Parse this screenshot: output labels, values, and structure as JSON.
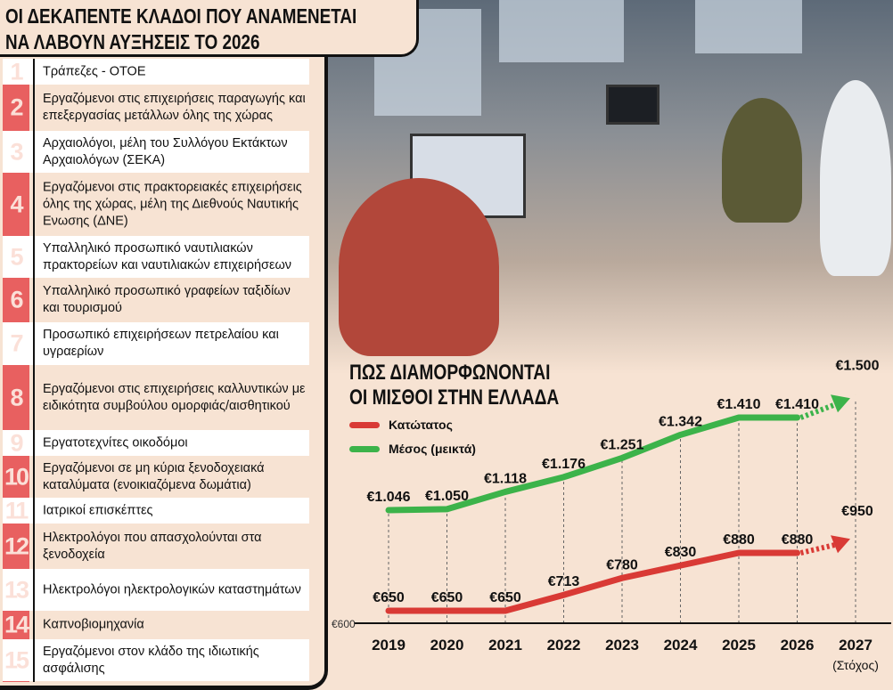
{
  "title": {
    "line1": "ΟΙ ΔΕΚΑΠΕΝΤΕ ΚΛΑΔΟΙ ΠΟΥ ΑΝΑΜΕΝΕΤΑΙ",
    "line2": "ΝΑ ΛΑΒΟΥΝ ΑΥΞΗΣΕΙΣ ΤΟ 2026"
  },
  "sectors": [
    {
      "n": "1",
      "text": "Τράπεζες - ΟΤΟΕ"
    },
    {
      "n": "2",
      "text": "Εργαζόμενοι στις επιχειρήσεις παραγωγής και επεξεργασίας μετάλλων όλης της χώρας"
    },
    {
      "n": "3",
      "text": "Αρχαιολόγοι, μέλη του Συλλόγου Εκτάκτων Αρχαιολόγων (ΣΕΚΑ)"
    },
    {
      "n": "4",
      "text": "Εργαζόμενοι στις πρακτορειακές επιχειρήσεις όλης της χώρας, μέλη της Διεθνούς Ναυτικής Ενωσης (ΔΝΕ)"
    },
    {
      "n": "5",
      "text": "Υπαλληλικό προσωπικό ναυτιλιακών πρακτορείων και ναυτιλιακών επιχειρήσεων"
    },
    {
      "n": "6",
      "text": "Υπαλληλικό προσωπικό γραφείων ταξιδίων και τουρισμού"
    },
    {
      "n": "7",
      "text": "Προσωπικό επιχειρήσεων πετρελαίου και υγραερίων"
    },
    {
      "n": "8",
      "text": "Εργαζόμενοι στις επιχειρήσεις καλλυντικών με ειδικότητα συμβούλου ομορφιάς/αισθητικού"
    },
    {
      "n": "9",
      "text": "Εργατοτεχνίτες οικοδόμοι"
    },
    {
      "n": "10",
      "text": "Εργαζόμενοι σε μη κύρια ξενοδοχειακά καταλύματα (ενοικιαζόμενα δωμάτια)"
    },
    {
      "n": "11",
      "text": "Ιατρικοί επισκέπτες"
    },
    {
      "n": "12",
      "text": "Ηλεκτρολόγοι που απασχολούνται στα ξενοδοχεία"
    },
    {
      "n": "13",
      "text": "Ηλεκτρολόγοι ηλεκτρολογικών καταστημάτων"
    },
    {
      "n": "14",
      "text": "Καπνοβιομηχανία"
    },
    {
      "n": "15",
      "text": "Εργαζόμενοι στον κλάδο της ιδιωτικής ασφάλισης"
    }
  ],
  "chart_data": {
    "type": "line",
    "title_line1": "ΠΩΣ ΔΙΑΜΟΡΦΩΝΟΝΤΑΙ",
    "title_line2": "ΟΙ ΜΙΣΘΟΙ ΣΤΗΝ ΕΛΛΑΔΑ",
    "x": [
      "2019",
      "2020",
      "2021",
      "2022",
      "2023",
      "2024",
      "2025",
      "2026",
      "2027"
    ],
    "x_note": "(Στόχος)",
    "y_base_label": "€600",
    "ylim": [
      600,
      1500
    ],
    "series": [
      {
        "name": "Κατώτατος",
        "color": "#d93a35",
        "values": [
          650,
          650,
          650,
          713,
          780,
          830,
          880,
          880,
          950
        ],
        "labels": [
          "€650",
          "€650",
          "€650",
          "€713",
          "€780",
          "€830",
          "€880",
          "€880",
          "€950"
        ],
        "projected_from_index": 7
      },
      {
        "name": "Μέσος (μεικτά)",
        "color": "#3cb34a",
        "values": [
          1046,
          1050,
          1118,
          1176,
          1251,
          1342,
          1410,
          1410,
          1500
        ],
        "labels": [
          "€1.046",
          "€1.050",
          "€1.118",
          "€1.176",
          "€1.251",
          "€1.342",
          "€1.410",
          "€1.410",
          "€1.500"
        ],
        "projected_from_index": 7
      }
    ]
  }
}
